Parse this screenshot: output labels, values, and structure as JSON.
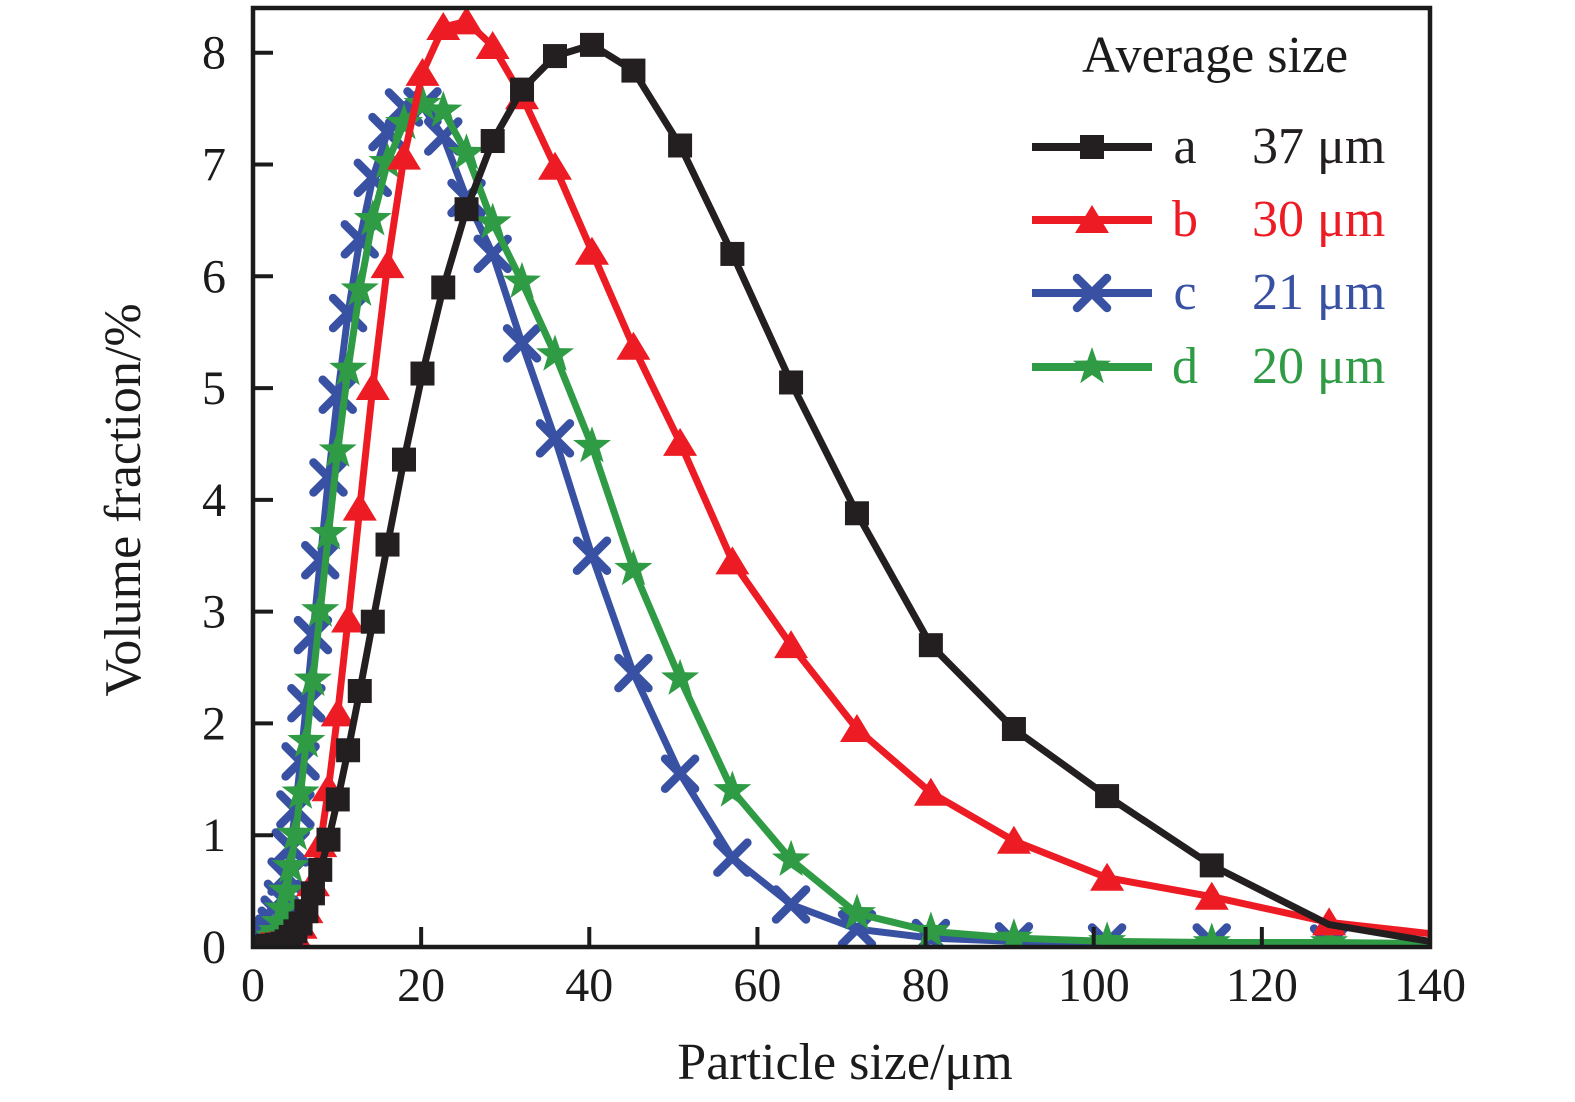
{
  "chart_data": {
    "type": "line",
    "title": "",
    "xlabel": "Particle size/μm",
    "ylabel": "Volume fraction/%",
    "xlim": [
      0,
      140
    ],
    "ylim": [
      0,
      8.4
    ],
    "x_ticks": [
      0,
      20,
      40,
      60,
      80,
      100,
      120,
      140
    ],
    "y_ticks": [
      0,
      1,
      2,
      3,
      4,
      5,
      6,
      7,
      8
    ],
    "grid": false,
    "axis_color": "#1b1b1b",
    "legend": {
      "title": "Average size",
      "position": "top-right"
    },
    "x": [
      1.0,
      1.12,
      1.26,
      1.41,
      1.59,
      1.78,
      2.0,
      2.24,
      2.52,
      2.83,
      3.17,
      3.56,
      4.0,
      4.49,
      5.04,
      5.66,
      6.35,
      7.13,
      8.0,
      8.98,
      10.08,
      11.31,
      12.7,
      14.25,
      16.0,
      17.96,
      20.16,
      22.63,
      25.4,
      28.51,
      32.0,
      35.92,
      40.32,
      45.25,
      50.8,
      57.02,
      64.0,
      71.84,
      80.63,
      90.51,
      101.59,
      114.04,
      128.0,
      140.0
    ],
    "series": [
      {
        "id": "a",
        "label": "a",
        "average_size": "37 μm",
        "color": "#231f20",
        "marker": "square",
        "last_marker_x": 114.04,
        "values": [
          0,
          0,
          0,
          0,
          0,
          0.01,
          0.01,
          0.01,
          0.01,
          0.02,
          0.02,
          0.03,
          0.05,
          0.09,
          0.14,
          0.21,
          0.32,
          0.48,
          0.69,
          0.96,
          1.32,
          1.76,
          2.29,
          2.91,
          3.6,
          4.36,
          5.13,
          5.9,
          6.6,
          7.21,
          7.67,
          7.97,
          8.07,
          7.84,
          7.17,
          6.2,
          5.05,
          3.88,
          2.7,
          1.95,
          1.35,
          0.73,
          0.2,
          0.05
        ]
      },
      {
        "id": "b",
        "label": "b",
        "average_size": "30 μm",
        "color": "#ed1c24",
        "marker": "triangle",
        "last_marker_x": 128.0,
        "values": [
          0,
          0,
          0,
          0,
          0,
          0,
          0.01,
          0.01,
          0.01,
          0.01,
          0.02,
          0.02,
          0.03,
          0.05,
          0.1,
          0.19,
          0.33,
          0.57,
          0.92,
          1.42,
          2.09,
          2.93,
          3.93,
          5.01,
          6.1,
          7.07,
          7.82,
          8.23,
          8.28,
          8.06,
          7.61,
          6.98,
          6.22,
          5.37,
          4.51,
          3.45,
          2.7,
          1.95,
          1.38,
          0.95,
          0.62,
          0.45,
          0.22,
          0.12
        ]
      },
      {
        "id": "c",
        "label": "c",
        "average_size": "21 μm",
        "color": "#3951a3",
        "marker": "xcross",
        "last_marker_x": 128.0,
        "values": [
          0,
          0,
          0,
          0.01,
          0.01,
          0.03,
          0.04,
          0.07,
          0.12,
          0.19,
          0.29,
          0.43,
          0.63,
          0.89,
          1.23,
          1.66,
          2.18,
          2.79,
          3.46,
          4.2,
          4.94,
          5.67,
          6.33,
          6.88,
          7.29,
          7.51,
          7.52,
          7.25,
          6.7,
          6.2,
          5.4,
          4.55,
          3.5,
          2.45,
          1.55,
          0.8,
          0.38,
          0.16,
          0.08,
          0.05,
          0.04,
          0.04,
          0.03,
          0.02
        ]
      },
      {
        "id": "d",
        "label": "d",
        "average_size": "20 μm",
        "color": "#2f9b45",
        "marker": "star",
        "last_marker_x": 128.0,
        "values": [
          0,
          0,
          0,
          0,
          0.01,
          0.01,
          0.03,
          0.05,
          0.09,
          0.14,
          0.22,
          0.34,
          0.5,
          0.72,
          1.01,
          1.38,
          1.84,
          2.39,
          3.01,
          3.7,
          4.44,
          5.17,
          5.88,
          6.51,
          7.02,
          7.37,
          7.54,
          7.48,
          7.1,
          6.48,
          5.95,
          5.3,
          4.48,
          3.38,
          2.4,
          1.4,
          0.78,
          0.3,
          0.14,
          0.08,
          0.05,
          0.04,
          0.04,
          0.03
        ]
      }
    ],
    "draw_order": [
      "c",
      "d",
      "b",
      "a"
    ]
  }
}
